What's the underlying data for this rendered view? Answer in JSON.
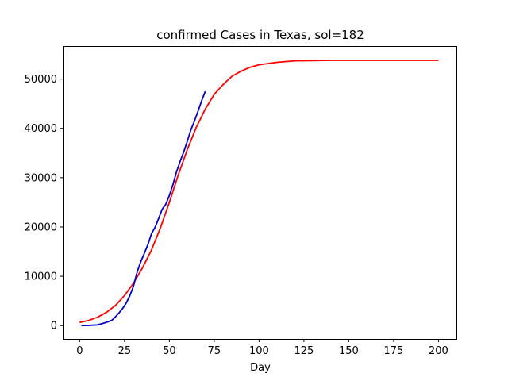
{
  "chart_data": {
    "type": "line",
    "title": "confirmed Cases in Texas, sol=182",
    "xlabel": "Day",
    "ylabel": "",
    "xlim": [
      -9,
      210
    ],
    "ylim": [
      -2700,
      56700
    ],
    "grid": false,
    "legend": "none",
    "x_ticks": [
      0,
      25,
      50,
      75,
      100,
      125,
      150,
      175,
      200
    ],
    "y_ticks": [
      0,
      10000,
      20000,
      30000,
      40000,
      50000
    ],
    "series": [
      {
        "color": "#ff0000",
        "x": [
          0,
          5,
          10,
          15,
          20,
          25,
          30,
          35,
          40,
          45,
          50,
          55,
          60,
          65,
          70,
          75,
          80,
          85,
          90,
          95,
          100,
          110,
          120,
          130,
          140,
          150,
          175,
          200
        ],
        "values": [
          650,
          1050,
          1700,
          2700,
          4100,
          6100,
          8600,
          11700,
          15300,
          19800,
          25000,
          30600,
          35700,
          40200,
          43900,
          46900,
          48900,
          50600,
          51600,
          52400,
          52900,
          53400,
          53700,
          53750,
          53800,
          53800,
          53800,
          53800
        ]
      },
      {
        "color": "#0000cc",
        "x": [
          1,
          5,
          10,
          13,
          16,
          18,
          20,
          22,
          24,
          26,
          28,
          30,
          32,
          34,
          36,
          38,
          40,
          42,
          44,
          46,
          48,
          50,
          52,
          54,
          56,
          58,
          60,
          62,
          64,
          66,
          68,
          70
        ],
        "values": [
          0,
          50,
          150,
          450,
          800,
          1100,
          1800,
          2600,
          3500,
          4600,
          6100,
          8000,
          10800,
          12900,
          14600,
          16400,
          18600,
          19900,
          21700,
          23600,
          24600,
          26400,
          28600,
          31200,
          33300,
          35200,
          37400,
          39700,
          41500,
          43500,
          45600,
          47500
        ]
      }
    ]
  }
}
